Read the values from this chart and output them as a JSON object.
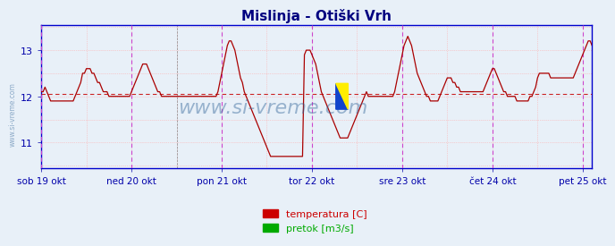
{
  "title": "Mislinja - Otiški Vrh",
  "title_color": "#000080",
  "title_fontsize": 11,
  "bg_color": "#e8f0f8",
  "plot_bg_color": "#e8f0f8",
  "figure_bg_color": "#e8f0f8",
  "ylim": [
    10.45,
    13.55
  ],
  "yticks": [
    11,
    12,
    13
  ],
  "ylabel_color": "#0000aa",
  "axis_color": "#0000cc",
  "grid_color_h": "#ffaaaa",
  "grid_color_v_major": "#dd88dd",
  "grid_color_v_minor": "#ffaaaa",
  "mean_line_color": "#cc2222",
  "mean_value": 12.05,
  "line_color": "#aa0000",
  "line_width": 1.0,
  "watermark": "www.si-vreme.com",
  "watermark_color": "#336699",
  "watermark_alpha": 0.45,
  "watermark_fontsize": 16,
  "tick_labels": [
    "sob 19 okt",
    "ned 20 okt",
    "pon 21 okt",
    "tor 22 okt",
    "sre 23 okt",
    "čet 24 okt",
    "pet 25 okt"
  ],
  "tick_positions": [
    0,
    48,
    96,
    144,
    192,
    240,
    288
  ],
  "vline_color_major": "#cc44cc",
  "vline_color_minor": "#888888",
  "legend_temp_color": "#cc0000",
  "legend_flow_color": "#00aa00",
  "legend_temp_label": "temperatura [C]",
  "legend_flow_label": "pretok [m3/s]",
  "temperature_data": [
    12.1,
    12.1,
    12.2,
    12.1,
    12.0,
    11.9,
    11.9,
    11.9,
    11.9,
    11.9,
    11.9,
    11.9,
    11.9,
    11.9,
    11.9,
    11.9,
    11.9,
    11.9,
    12.0,
    12.1,
    12.2,
    12.3,
    12.5,
    12.5,
    12.6,
    12.6,
    12.6,
    12.5,
    12.5,
    12.4,
    12.3,
    12.3,
    12.2,
    12.1,
    12.1,
    12.1,
    12.0,
    12.0,
    12.0,
    12.0,
    12.0,
    12.0,
    12.0,
    12.0,
    12.0,
    12.0,
    12.0,
    12.0,
    12.1,
    12.2,
    12.3,
    12.4,
    12.5,
    12.6,
    12.7,
    12.7,
    12.7,
    12.6,
    12.5,
    12.4,
    12.3,
    12.2,
    12.1,
    12.1,
    12.0,
    12.0,
    12.0,
    12.0,
    12.0,
    12.0,
    12.0,
    12.0,
    12.0,
    12.0,
    12.0,
    12.0,
    12.0,
    12.0,
    12.0,
    12.0,
    12.0,
    12.0,
    12.0,
    12.0,
    12.0,
    12.0,
    12.0,
    12.0,
    12.0,
    12.0,
    12.0,
    12.0,
    12.0,
    12.0,
    12.1,
    12.3,
    12.5,
    12.7,
    12.9,
    13.1,
    13.2,
    13.2,
    13.1,
    13.0,
    12.8,
    12.6,
    12.4,
    12.3,
    12.1,
    12.0,
    11.9,
    11.8,
    11.7,
    11.6,
    11.5,
    11.4,
    11.3,
    11.2,
    11.1,
    11.0,
    10.9,
    10.8,
    10.7,
    10.7,
    10.7,
    10.7,
    10.7,
    10.7,
    10.7,
    10.7,
    10.7,
    10.7,
    10.7,
    10.7,
    10.7,
    10.7,
    10.7,
    10.7,
    10.7,
    10.7,
    12.9,
    13.0,
    13.0,
    13.0,
    12.9,
    12.8,
    12.7,
    12.5,
    12.3,
    12.1,
    12.0,
    11.9,
    11.8,
    11.7,
    11.6,
    11.5,
    11.4,
    11.3,
    11.2,
    11.1,
    11.1,
    11.1,
    11.1,
    11.1,
    11.2,
    11.3,
    11.4,
    11.5,
    11.6,
    11.7,
    11.8,
    11.9,
    12.0,
    12.1,
    12.0,
    12.0,
    12.0,
    12.0,
    12.0,
    12.0,
    12.0,
    12.0,
    12.0,
    12.0,
    12.0,
    12.0,
    12.0,
    12.0,
    12.1,
    12.3,
    12.5,
    12.7,
    12.9,
    13.1,
    13.2,
    13.3,
    13.2,
    13.1,
    12.9,
    12.7,
    12.5,
    12.4,
    12.3,
    12.2,
    12.1,
    12.0,
    12.0,
    11.9,
    11.9,
    11.9,
    11.9,
    11.9,
    12.0,
    12.1,
    12.2,
    12.3,
    12.4,
    12.4,
    12.4,
    12.3,
    12.3,
    12.2,
    12.2,
    12.1,
    12.1,
    12.1,
    12.1,
    12.1,
    12.1,
    12.1,
    12.1,
    12.1,
    12.1,
    12.1,
    12.1,
    12.1,
    12.2,
    12.3,
    12.4,
    12.5,
    12.6,
    12.6,
    12.5,
    12.4,
    12.3,
    12.2,
    12.1,
    12.1,
    12.0,
    12.0,
    12.0,
    12.0,
    12.0,
    11.9,
    11.9,
    11.9,
    11.9,
    11.9,
    11.9,
    11.9,
    12.0,
    12.0,
    12.1,
    12.2,
    12.4,
    12.5,
    12.5,
    12.5,
    12.5,
    12.5,
    12.5,
    12.4,
    12.4,
    12.4,
    12.4,
    12.4,
    12.4,
    12.4,
    12.4,
    12.4,
    12.4,
    12.4,
    12.4,
    12.4,
    12.5,
    12.6,
    12.7,
    12.8,
    12.9,
    13.0,
    13.1,
    13.2,
    13.2,
    13.1
  ]
}
